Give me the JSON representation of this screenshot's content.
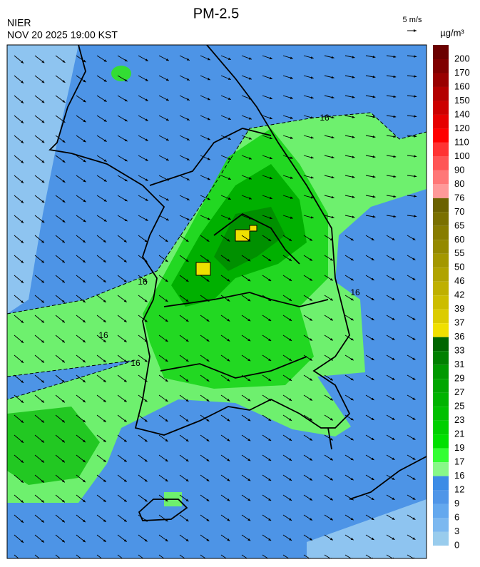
{
  "header": {
    "title": "PM-2.5",
    "agency": "NIER",
    "timestamp": "NOV 20 2025 19:00 KST"
  },
  "wind_scale": {
    "label": "5 m/s"
  },
  "colorbar": {
    "unit": "µg/m³",
    "labels": [
      200,
      170,
      160,
      150,
      140,
      120,
      110,
      100,
      90,
      80,
      76,
      70,
      65,
      60,
      55,
      50,
      46,
      42,
      39,
      37,
      36,
      33,
      31,
      29,
      27,
      25,
      23,
      21,
      19,
      17,
      16,
      12,
      9,
      6,
      3,
      0
    ],
    "colors": [
      "#6b0000",
      "#800000",
      "#990000",
      "#b30000",
      "#cc0000",
      "#e60000",
      "#ff0000",
      "#ff3333",
      "#ff5555",
      "#ff7777",
      "#ff9999",
      "#6b6200",
      "#7a7000",
      "#877c00",
      "#948900",
      "#a39700",
      "#b0a300",
      "#bfb000",
      "#ccbd00",
      "#dccc00",
      "#f0e000",
      "#006600",
      "#008000",
      "#009900",
      "#00a600",
      "#00b300",
      "#00c000",
      "#00d000",
      "#00e000",
      "#33ff33",
      "#88f888",
      "#3c8ce6",
      "#5096e8",
      "#64a8ee",
      "#7cb8f0",
      "#99cced"
    ]
  },
  "contour_labels": [
    "16",
    "16",
    "16",
    "16",
    "16"
  ]
}
